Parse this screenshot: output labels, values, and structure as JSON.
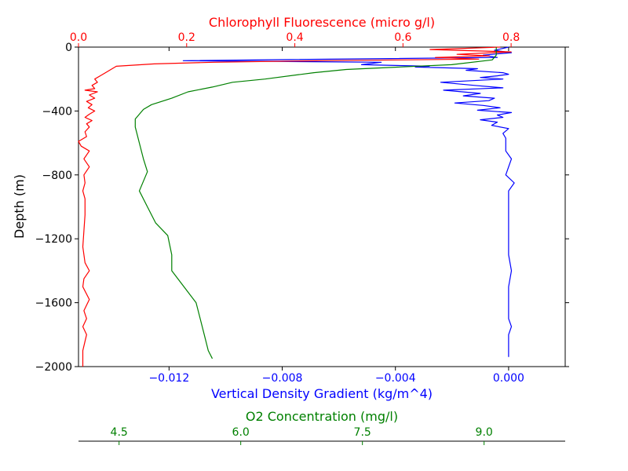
{
  "chart_data": {
    "type": "line",
    "y_axis": {
      "label": "Depth (m)",
      "range": [
        -2000,
        0
      ],
      "ticks": [
        0,
        -400,
        -800,
        -1200,
        -1600,
        -2000
      ],
      "tick_labels": [
        "0",
        "−400",
        "−800",
        "−1200",
        "−1600",
        "−2000"
      ]
    },
    "axes": {
      "density": {
        "label": "Vertical Density Gradient (kg/m^4)",
        "color": "#0000ff",
        "position": "bottom",
        "range": [
          -0.0152,
          0.002
        ],
        "ticks": [
          -0.012,
          -0.008,
          -0.004,
          0.0
        ],
        "tick_labels": [
          "−0.012",
          "−0.008",
          "−0.004",
          "0.000"
        ]
      },
      "chlorophyll": {
        "label": "Chlorophyll Fluorescence (micro g/l)",
        "color": "#ff0000",
        "position": "top",
        "range": [
          0.0,
          0.9
        ],
        "ticks": [
          0.0,
          0.2,
          0.4,
          0.6,
          0.8
        ],
        "tick_labels": [
          "0.0",
          "0.2",
          "0.4",
          "0.6",
          "0.8"
        ]
      },
      "oxygen": {
        "label": "O2 Concentration (mg/l)",
        "color": "#008000",
        "position": "bottom-offset",
        "range": [
          4.0,
          10.0
        ],
        "ticks": [
          4.5,
          6.0,
          7.5,
          9.0
        ],
        "tick_labels": [
          "4.5",
          "6.0",
          "7.5",
          "9.0"
        ]
      }
    },
    "series": [
      {
        "axis": "density",
        "color": "#0000ff",
        "points": [
          [
            0.0,
            0
          ],
          [
            -0.0005,
            -20
          ],
          [
            0.0001,
            -35
          ],
          [
            -0.0009,
            -50
          ],
          [
            -0.0004,
            -65
          ],
          [
            -0.0115,
            -85
          ],
          [
            -0.0045,
            -95
          ],
          [
            -0.0052,
            -110
          ],
          [
            -0.0028,
            -120
          ],
          [
            -0.0033,
            -125
          ],
          [
            -0.0011,
            -135
          ],
          [
            -0.0015,
            -145
          ],
          [
            -0.0002,
            -160
          ],
          [
            0.0,
            -170
          ],
          [
            -0.0004,
            -180
          ],
          [
            -0.001,
            -190
          ],
          [
            -0.0002,
            -200
          ],
          [
            -0.0024,
            -220
          ],
          [
            -0.0012,
            -240
          ],
          [
            -0.0002,
            -255
          ],
          [
            -0.0023,
            -270
          ],
          [
            -0.001,
            -290
          ],
          [
            -0.0016,
            -305
          ],
          [
            -0.0005,
            -320
          ],
          [
            -0.0007,
            -335
          ],
          [
            -0.0019,
            -350
          ],
          [
            -0.0009,
            -365
          ],
          [
            -0.0003,
            -380
          ],
          [
            -0.0011,
            -395
          ],
          [
            0.0001,
            -410
          ],
          [
            -0.0004,
            -425
          ],
          [
            -0.0002,
            -440
          ],
          [
            -0.001,
            -455
          ],
          [
            -0.0004,
            -470
          ],
          [
            -0.0006,
            -490
          ],
          [
            0.0,
            -510
          ],
          [
            -0.0002,
            -540
          ],
          [
            -0.0001,
            -570
          ],
          [
            -0.0001,
            -600
          ],
          [
            -0.0001,
            -620
          ],
          [
            -0.0001,
            -650
          ],
          [
            0.0001,
            -700
          ],
          [
            0.0,
            -750
          ],
          [
            -0.0001,
            -800
          ],
          [
            0.0002,
            -850
          ],
          [
            0.0,
            -900
          ],
          [
            0.0,
            -1000
          ],
          [
            0.0,
            -1100
          ],
          [
            0.0,
            -1200
          ],
          [
            0.0,
            -1300
          ],
          [
            0.0001,
            -1400
          ],
          [
            0.0,
            -1500
          ],
          [
            0.0,
            -1600
          ],
          [
            0.0,
            -1700
          ],
          [
            0.0001,
            -1750
          ],
          [
            0.0,
            -1800
          ],
          [
            0.0,
            -1900
          ],
          [
            0.0,
            -1940
          ]
        ]
      },
      {
        "axis": "chlorophyll",
        "color": "#ff0000",
        "points": [
          [
            0.78,
            0
          ],
          [
            0.65,
            15
          ],
          [
            0.8,
            30
          ],
          [
            0.7,
            45
          ],
          [
            0.76,
            55
          ],
          [
            0.66,
            65
          ],
          [
            0.74,
            75
          ],
          [
            0.45,
            85
          ],
          [
            0.25,
            95
          ],
          [
            0.14,
            105
          ],
          [
            0.07,
            120
          ],
          [
            0.06,
            140
          ],
          [
            0.05,
            160
          ],
          [
            0.04,
            180
          ],
          [
            0.03,
            200
          ],
          [
            0.035,
            220
          ],
          [
            0.025,
            240
          ],
          [
            0.03,
            260
          ],
          [
            0.012,
            270
          ],
          [
            0.035,
            280
          ],
          [
            0.02,
            300
          ],
          [
            0.03,
            320
          ],
          [
            0.015,
            340
          ],
          [
            0.025,
            360
          ],
          [
            0.018,
            380
          ],
          [
            0.03,
            400
          ],
          [
            0.02,
            420
          ],
          [
            0.012,
            440
          ],
          [
            0.025,
            460
          ],
          [
            0.015,
            480
          ],
          [
            0.02,
            500
          ],
          [
            0.012,
            530
          ],
          [
            0.015,
            560
          ],
          [
            0.0,
            590
          ],
          [
            0.005,
            620
          ],
          [
            0.02,
            650
          ],
          [
            0.01,
            700
          ],
          [
            0.02,
            750
          ],
          [
            0.01,
            800
          ],
          [
            0.012,
            850
          ],
          [
            0.008,
            900
          ],
          [
            0.012,
            950
          ],
          [
            0.012,
            1050
          ],
          [
            0.01,
            1150
          ],
          [
            0.008,
            1250
          ],
          [
            0.012,
            1350
          ],
          [
            0.02,
            1400
          ],
          [
            0.01,
            1450
          ],
          [
            0.008,
            1500
          ],
          [
            0.02,
            1580
          ],
          [
            0.01,
            1650
          ],
          [
            0.015,
            1700
          ],
          [
            0.008,
            1750
          ],
          [
            0.015,
            1800
          ],
          [
            0.008,
            1900
          ],
          [
            0.008,
            1950
          ],
          [
            0.008,
            2000
          ]
        ]
      },
      {
        "axis": "oxygen",
        "color": "#008000",
        "points": [
          [
            9.15,
            0
          ],
          [
            9.15,
            50
          ],
          [
            9.1,
            80
          ],
          [
            8.6,
            110
          ],
          [
            7.3,
            140
          ],
          [
            6.9,
            160
          ],
          [
            6.3,
            200
          ],
          [
            5.9,
            220
          ],
          [
            5.65,
            250
          ],
          [
            5.35,
            280
          ],
          [
            5.15,
            320
          ],
          [
            4.9,
            360
          ],
          [
            4.8,
            390
          ],
          [
            4.7,
            450
          ],
          [
            4.7,
            500
          ],
          [
            4.75,
            600
          ],
          [
            4.8,
            700
          ],
          [
            4.85,
            780
          ],
          [
            4.75,
            900
          ],
          [
            4.85,
            1000
          ],
          [
            4.95,
            1100
          ],
          [
            5.1,
            1180
          ],
          [
            5.15,
            1300
          ],
          [
            5.15,
            1400
          ],
          [
            5.3,
            1500
          ],
          [
            5.45,
            1600
          ],
          [
            5.5,
            1700
          ],
          [
            5.55,
            1800
          ],
          [
            5.6,
            1900
          ],
          [
            5.65,
            1950
          ]
        ]
      }
    ]
  }
}
